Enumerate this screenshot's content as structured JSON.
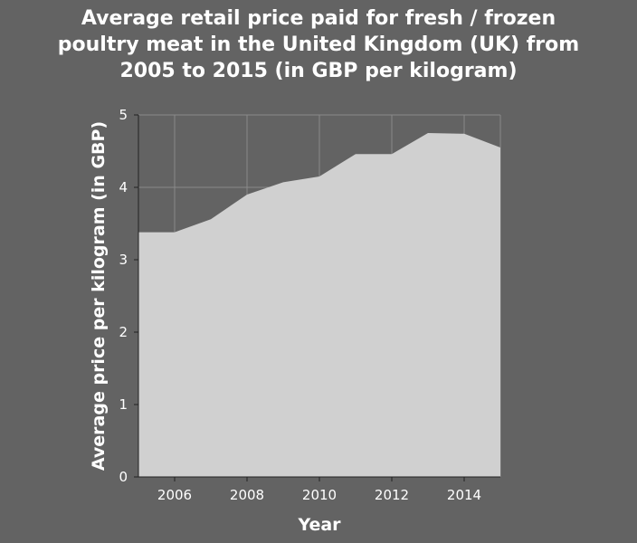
{
  "chart_data": {
    "type": "area",
    "title_lines": [
      "Average retail price paid for fresh / frozen",
      "poultry meat in the United Kingdom (UK) from",
      "2005 to 2015 (in GBP per kilogram)"
    ],
    "xlabel": "Year",
    "ylabel": "Average price per kilogram (in GBP)",
    "x": [
      2005,
      2006,
      2007,
      2008,
      2009,
      2010,
      2011,
      2012,
      2013,
      2014,
      2015
    ],
    "values": [
      3.38,
      3.38,
      3.56,
      3.9,
      4.07,
      4.15,
      4.46,
      4.46,
      4.75,
      4.74,
      4.55
    ],
    "xlim": [
      2005,
      2015
    ],
    "ylim": [
      0,
      5
    ],
    "x_ticks": [
      2006,
      2008,
      2010,
      2012,
      2014
    ],
    "x_tick_labels": [
      "2006",
      "2008",
      "2010",
      "2012",
      "2014"
    ],
    "y_ticks": [
      0,
      1,
      2,
      3,
      4,
      5
    ],
    "y_tick_labels": [
      "0",
      "1",
      "2",
      "3",
      "4",
      "5"
    ],
    "grid": true,
    "colors": {
      "background": "#636363",
      "fill": "#d0d0d0",
      "grid": "#8a8a8a",
      "text": "#ffffff"
    }
  }
}
